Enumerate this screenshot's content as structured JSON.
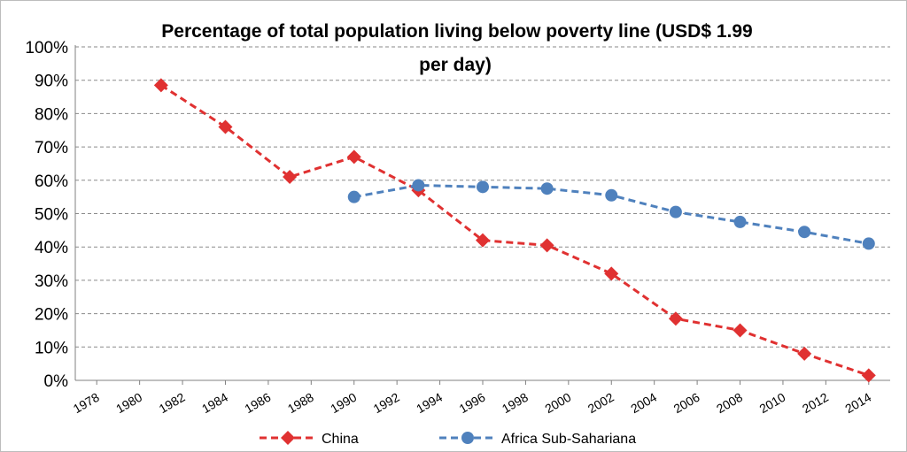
{
  "chart_data": {
    "type": "line",
    "title_line1": "Percentage of total population living below poverty line (USD$ 1.99",
    "title_line2": "per day)",
    "xlabel": "",
    "ylabel": "",
    "x_ticks": [
      "1978",
      "1980",
      "1982",
      "1984",
      "1986",
      "1988",
      "1990",
      "1992",
      "1994",
      "1996",
      "1998",
      "2000",
      "2002",
      "2004",
      "2006",
      "2008",
      "2010",
      "2012",
      "2014"
    ],
    "y_ticks": [
      "0%",
      "10%",
      "20%",
      "30%",
      "40%",
      "50%",
      "60%",
      "70%",
      "80%",
      "90%",
      "100%"
    ],
    "xlim": [
      1977,
      2015
    ],
    "ylim": [
      0,
      100
    ],
    "grid": true,
    "legend_position": "bottom",
    "series": [
      {
        "name": "China",
        "color": "#e03131",
        "marker": "diamond",
        "line_style": "dashed",
        "x": [
          1981,
          1984,
          1987,
          1990,
          1993,
          1996,
          1999,
          2002,
          2005,
          2008,
          2011,
          2014
        ],
        "y": [
          88.5,
          76,
          61,
          67,
          57,
          42,
          40.5,
          32,
          18.5,
          15,
          8,
          1.5
        ]
      },
      {
        "name": "Africa Sub-Sahariana",
        "color": "#4f81bd",
        "marker": "circle",
        "line_style": "dashed",
        "x": [
          1990,
          1993,
          1996,
          1999,
          2002,
          2005,
          2008,
          2011,
          2014
        ],
        "y": [
          55,
          58.5,
          58,
          57.5,
          55.5,
          50.5,
          47.5,
          44.5,
          41
        ]
      }
    ]
  }
}
